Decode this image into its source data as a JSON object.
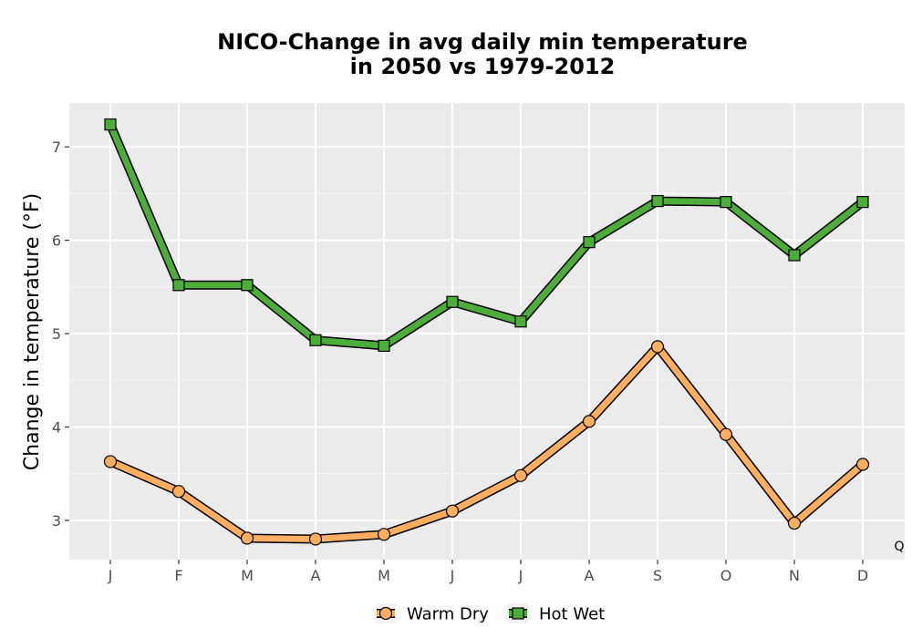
{
  "chart_data": {
    "type": "line",
    "title_lines": [
      "NICO-Change in avg daily min temperature",
      "in 2050 vs 1979-2012"
    ],
    "ylabel": "Change in temperature (°F)",
    "xlabel": "",
    "categories": [
      "J",
      "F",
      "M",
      "A",
      "M",
      "J",
      "J",
      "A",
      "S",
      "O",
      "N",
      "D"
    ],
    "yticks": [
      3,
      4,
      5,
      6,
      7
    ],
    "ylim": [
      2.58,
      7.47
    ],
    "grid": true,
    "legend_position": "bottom",
    "corner_label": "Q",
    "series": [
      {
        "name": "Warm Dry",
        "marker": "circle",
        "color": "#FDAE61",
        "values": [
          3.63,
          3.31,
          2.81,
          2.8,
          2.85,
          3.1,
          3.48,
          4.06,
          4.86,
          3.92,
          2.97,
          3.6
        ]
      },
      {
        "name": "Hot Wet",
        "marker": "square",
        "color": "#4DAC3B",
        "values": [
          7.24,
          5.52,
          5.52,
          4.93,
          4.87,
          5.34,
          5.13,
          5.98,
          6.42,
          6.41,
          5.84,
          6.41
        ]
      }
    ]
  }
}
